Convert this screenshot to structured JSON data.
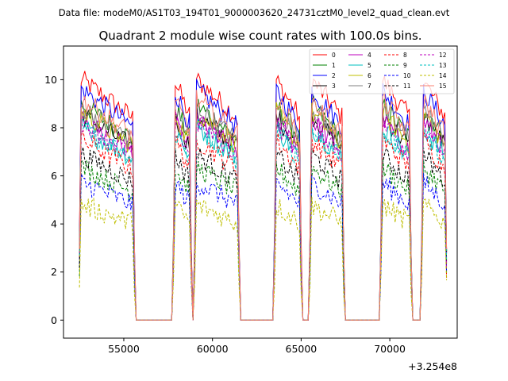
{
  "chart_data": {
    "type": "line",
    "suptitle": "Data file: modeM0/AS1T03_194T01_9000003620_24731cztM0_level2_quad_clean.evt",
    "title": "Quadrant 2 module wise count rates with 100.0s bins.",
    "x_offset_label": "+3.254e8",
    "xlim": [
      51600,
      73800
    ],
    "ylim": [
      -0.75,
      11.4
    ],
    "xticks": [
      55000,
      60000,
      65000,
      70000
    ],
    "xtick_labels": [
      "55000",
      "60000",
      "65000",
      "70000"
    ],
    "yticks": [
      0,
      2,
      4,
      6,
      8,
      10
    ],
    "ytick_labels": [
      "0",
      "2",
      "4",
      "6",
      "8",
      "10"
    ],
    "segments": [
      [
        52500,
        55600
      ],
      [
        57800,
        58800
      ],
      [
        59000,
        61500
      ],
      [
        63500,
        65000
      ],
      [
        65500,
        67400
      ],
      [
        69500,
        71200
      ],
      [
        71800,
        73200
      ]
    ],
    "series": [
      {
        "name": "0",
        "color": "#ff0000",
        "dash": "solid",
        "level": 9.6
      },
      {
        "name": "1",
        "color": "#008000",
        "dash": "solid",
        "level": 8.6
      },
      {
        "name": "2",
        "color": "#0000ff",
        "dash": "solid",
        "level": 9.2
      },
      {
        "name": "3",
        "color": "#000000",
        "dash": "solid",
        "level": 8.2
      },
      {
        "name": "4",
        "color": "#bf00bf",
        "dash": "solid",
        "level": 8.0
      },
      {
        "name": "5",
        "color": "#00bfbf",
        "dash": "solid",
        "level": 7.7
      },
      {
        "name": "6",
        "color": "#bfbf00",
        "dash": "solid",
        "level": 8.3
      },
      {
        "name": "7",
        "color": "#808080",
        "dash": "solid",
        "level": 8.5
      },
      {
        "name": "8",
        "color": "#ff0000",
        "dash": "dashed",
        "level": 7.2
      },
      {
        "name": "9",
        "color": "#008000",
        "dash": "dashed",
        "level": 6.1
      },
      {
        "name": "10",
        "color": "#0000ff",
        "dash": "dashed",
        "level": 5.5
      },
      {
        "name": "11",
        "color": "#000000",
        "dash": "dashed",
        "level": 6.6
      },
      {
        "name": "12",
        "color": "#bf00bf",
        "dash": "dashed",
        "level": 7.9
      },
      {
        "name": "13",
        "color": "#00bfbf",
        "dash": "dashed",
        "level": 7.6
      },
      {
        "name": "14",
        "color": "#bfbf00",
        "dash": "dashed",
        "level": 4.6
      },
      {
        "name": "15",
        "color": "#fa8072",
        "dash": "solid",
        "level": 8.8
      }
    ]
  }
}
